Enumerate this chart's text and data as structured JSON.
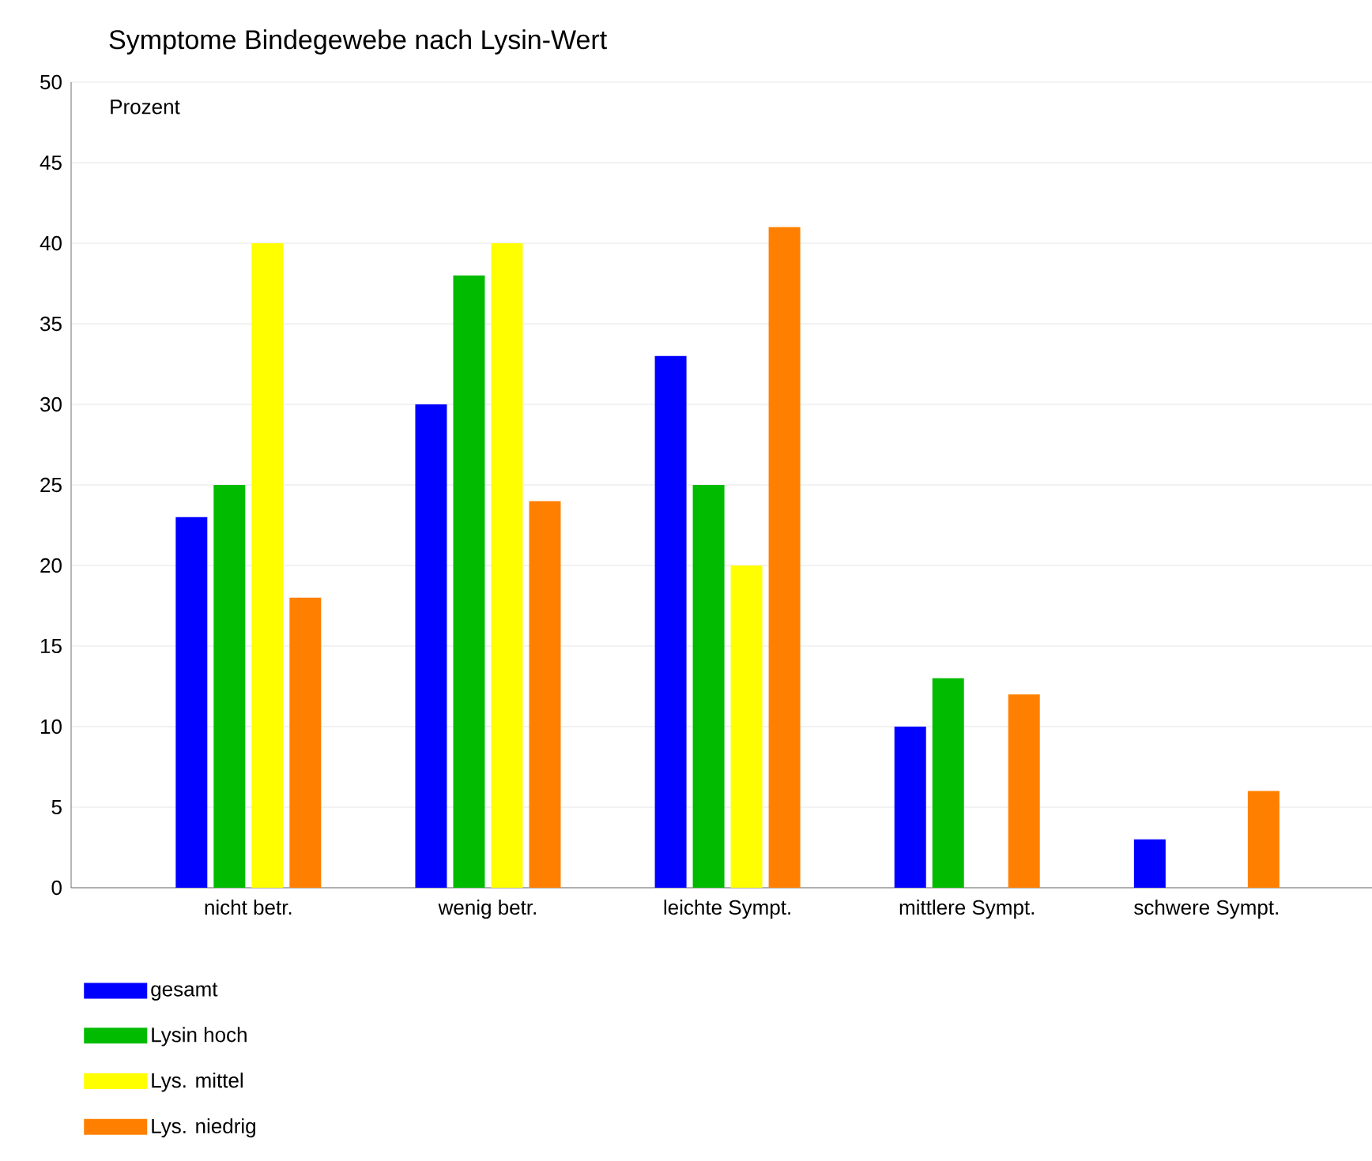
{
  "chart_data": {
    "type": "bar",
    "title": "Symptome Bindegewebe nach Lysin-Wert",
    "ylabel": "Prozent",
    "categories": [
      "nicht betr.",
      "wenig betr.",
      "leichte Sympt.",
      "mittlere Sympt.",
      "schwere Sympt."
    ],
    "series": [
      {
        "name": "gesamt",
        "color": "#0000ff",
        "values": [
          23,
          30,
          33,
          10,
          3
        ]
      },
      {
        "name": "Lysin hoch",
        "color": "#00bb00",
        "values": [
          25,
          38,
          25,
          13,
          0
        ]
      },
      {
        "name": "Lys. mittel",
        "color": "#ffff00",
        "values": [
          40,
          40,
          20,
          0,
          0
        ]
      },
      {
        "name": "Lys. niedrig",
        "color": "#ff8000",
        "values": [
          18,
          24,
          41,
          12,
          6
        ]
      }
    ],
    "ylim": [
      0,
      50
    ],
    "yticks": [
      0,
      5,
      10,
      15,
      20,
      25,
      30,
      35,
      40,
      45,
      50
    ],
    "grid": "y",
    "legend": "bottom"
  }
}
